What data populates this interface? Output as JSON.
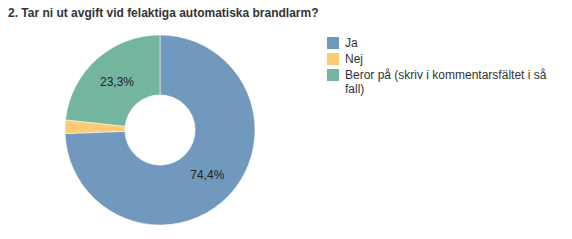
{
  "chart_data": {
    "type": "pie",
    "title": "2. Tar ni ut avgift vid felaktiga automatiska brandlarm?",
    "categories": [
      "Ja",
      "Nej",
      "Beror på (skriv i kommentarsfältet i så fall)"
    ],
    "values": [
      74.4,
      2.3,
      23.3
    ],
    "value_labels": [
      "74,4%",
      null,
      "23,3%"
    ],
    "colors": [
      "#7199be",
      "#fecb75",
      "#74b59f"
    ],
    "data_labels": true,
    "legend": "right"
  }
}
